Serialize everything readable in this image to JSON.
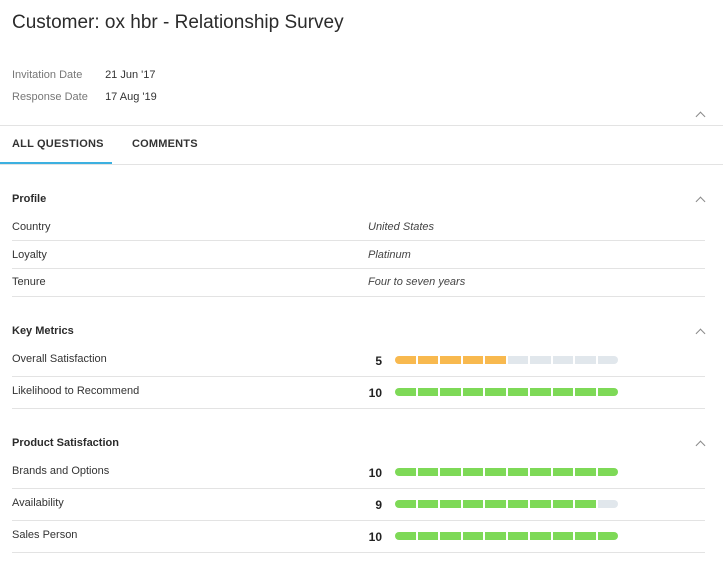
{
  "page": {
    "title": "Customer: ox hbr - Relationship Survey"
  },
  "meta": {
    "invitation_label": "Invitation Date",
    "invitation_value": "21 Jun '17",
    "response_label": "Response Date",
    "response_value": "17 Aug '19"
  },
  "tabs": [
    {
      "label": "ALL QUESTIONS",
      "active": true
    },
    {
      "label": "COMMENTS",
      "active": false
    }
  ],
  "colors": {
    "accent": "#3cb0e0",
    "high": "#7ed957",
    "mid": "#f8b94f",
    "empty": "#e1e7ec"
  },
  "sections": [
    {
      "title": "Profile",
      "rows": [
        {
          "label": "Country",
          "answer": "United States"
        },
        {
          "label": "Loyalty",
          "answer": "Platinum"
        },
        {
          "label": "Tenure",
          "answer": "Four to seven years"
        }
      ]
    },
    {
      "title": "Key Metrics",
      "rows": [
        {
          "label": "Overall Satisfaction",
          "score": "5",
          "level": 5,
          "max": 10,
          "color": "#f8b94f"
        },
        {
          "label": "Likelihood to Recommend",
          "score": "10",
          "level": 10,
          "max": 10,
          "color": "#7ed957"
        }
      ]
    },
    {
      "title": "Product Satisfaction",
      "rows": [
        {
          "label": "Brands and Options",
          "score": "10",
          "level": 10,
          "max": 10,
          "color": "#7ed957"
        },
        {
          "label": "Availability",
          "score": "9",
          "level": 9,
          "max": 10,
          "color": "#7ed957"
        },
        {
          "label": "Sales Person",
          "score": "10",
          "level": 10,
          "max": 10,
          "color": "#7ed957"
        }
      ]
    }
  ]
}
